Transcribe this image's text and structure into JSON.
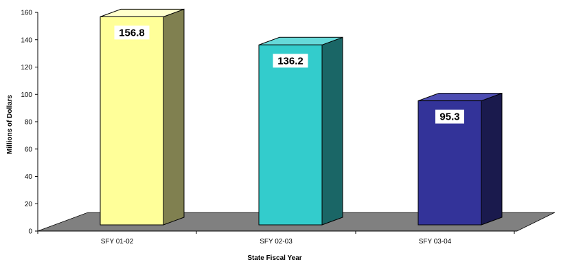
{
  "chart_data": {
    "type": "bar",
    "title": "",
    "xlabel": "State Fiscal Year",
    "ylabel": "Millions of Dollars",
    "categories": [
      "SFY 01-02",
      "SFY 02-03",
      "SFY 03-04"
    ],
    "values": [
      156.8,
      136.2,
      95.3
    ],
    "data_labels": [
      "156.8",
      "136.2",
      "95.3"
    ],
    "yticks": [
      0,
      20,
      40,
      60,
      80,
      100,
      120,
      140,
      160
    ],
    "ylim": [
      0,
      160
    ],
    "grid": false,
    "legend": "none",
    "three_d": true,
    "floor_color": "#808080",
    "bar_colors": [
      {
        "front": "#FFFF99",
        "side": "#808050",
        "top": "#FFFFCC"
      },
      {
        "front": "#33CCCC",
        "side": "#1A6666",
        "top": "#66D9D9"
      },
      {
        "front": "#333399",
        "side": "#1A1A4D",
        "top": "#4D4DB3"
      }
    ]
  }
}
